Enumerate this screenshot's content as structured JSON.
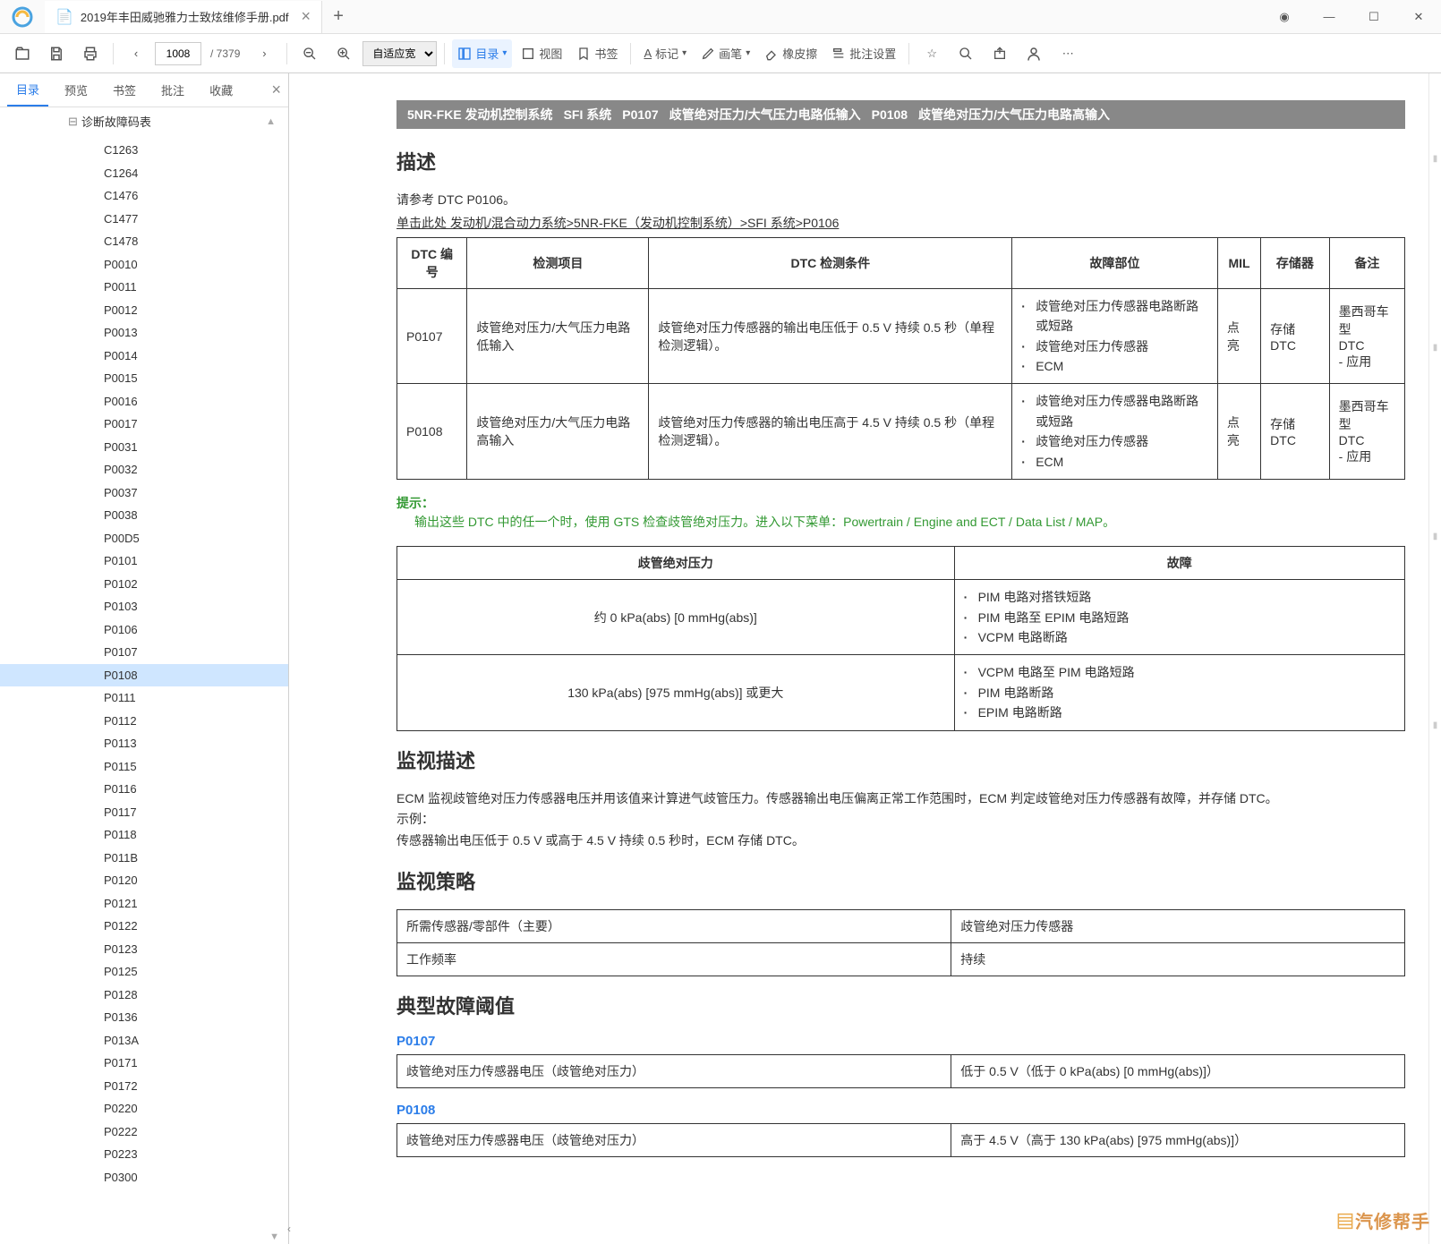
{
  "app": {
    "tab_title": "2019年丰田威驰雅力士致炫维修手册.pdf"
  },
  "toolbar": {
    "page_current": "1008",
    "page_total": "/ 7379",
    "zoom_mode": "自适应宽",
    "outline": "目录",
    "view": "视图",
    "bookmark": "书签",
    "annotate": "标记",
    "brush": "画笔",
    "eraser": "橡皮擦",
    "batch": "批注设置"
  },
  "sidebar": {
    "tabs": [
      "目录",
      "预览",
      "书签",
      "批注",
      "收藏"
    ],
    "active_tab": 0,
    "header": "诊断故障码表",
    "items": [
      "C1263",
      "C1264",
      "C1476",
      "C1477",
      "C1478",
      "P0010",
      "P0011",
      "P0012",
      "P0013",
      "P0014",
      "P0015",
      "P0016",
      "P0017",
      "P0031",
      "P0032",
      "P0037",
      "P0038",
      "P00D5",
      "P0101",
      "P0102",
      "P0103",
      "P0106",
      "P0107",
      "P0108",
      "P0111",
      "P0112",
      "P0113",
      "P0115",
      "P0116",
      "P0117",
      "P0118",
      "P011B",
      "P0120",
      "P0121",
      "P0122",
      "P0123",
      "P0125",
      "P0128",
      "P0136",
      "P013A",
      "P0171",
      "P0172",
      "P0220",
      "P0222",
      "P0223",
      "P0300"
    ],
    "selected": "P0108"
  },
  "doc": {
    "breadcrumb": [
      "5NR-FKE 发动机控制系统",
      "SFI 系统",
      "P0107",
      "歧管绝对压力/大气压力电路低输入",
      "P0108",
      "歧管绝对压力/大气压力电路高输入"
    ],
    "h_desc": "描述",
    "intro1": "请参考 DTC P0106。",
    "intro2": "单击此处 发动机/混合动力系统>5NR-FKE（发动机控制系统）>SFI 系统>P0106",
    "tbl1": {
      "headers": [
        "DTC 编号",
        "检测项目",
        "DTC 检测条件",
        "故障部位",
        "MIL",
        "存储器",
        "备注"
      ],
      "rows": [
        {
          "code": "P0107",
          "item": "歧管绝对压力/大气压力电路低输入",
          "cond": "歧管绝对压力传感器的输出电压低于 0.5 V 持续 0.5 秒（单程检测逻辑）。",
          "fault": [
            "歧管绝对压力传感器电路断路或短路",
            "歧管绝对压力传感器",
            "ECM"
          ],
          "mil": "点亮",
          "store": "存储 DTC",
          "note": "墨西哥车型\nDTC\n- 应用"
        },
        {
          "code": "P0108",
          "item": "歧管绝对压力/大气压力电路高输入",
          "cond": "歧管绝对压力传感器的输出电压高于 4.5 V 持续 0.5 秒（单程检测逻辑）。",
          "fault": [
            "歧管绝对压力传感器电路断路或短路",
            "歧管绝对压力传感器",
            "ECM"
          ],
          "mil": "点亮",
          "store": "存储 DTC",
          "note": "墨西哥车型\nDTC\n- 应用"
        }
      ]
    },
    "hint_label": "提示：",
    "hint_text": "输出这些 DTC 中的任一个时，使用 GTS 检查歧管绝对压力。进入以下菜单：Powertrain / Engine and ECT / Data List / MAP。",
    "tbl2": {
      "headers": [
        "歧管绝对压力",
        "故障"
      ],
      "rows": [
        {
          "pressure": "约 0 kPa(abs) [0 mmHg(abs)]",
          "faults": [
            "PIM 电路对搭铁短路",
            "PIM 电路至 EPIM 电路短路",
            "VCPM 电路断路"
          ]
        },
        {
          "pressure": "130 kPa(abs) [975 mmHg(abs)] 或更大",
          "faults": [
            "VCPM 电路至 PIM 电路短路",
            "PIM 电路断路",
            "EPIM 电路断路"
          ]
        }
      ]
    },
    "h_monitor_desc": "监视描述",
    "monitor_desc_text": "ECM 监视歧管绝对压力传感器电压并用该值来计算进气歧管压力。传感器输出电压偏离正常工作范围时，ECM 判定歧管绝对压力传感器有故障，并存储 DTC。\n示例：\n传感器输出电压低于 0.5 V 或高于 4.5 V 持续 0.5 秒时，ECM 存储 DTC。",
    "h_monitor_strat": "监视策略",
    "tbl3": {
      "rows": [
        [
          "所需传感器/零部件（主要）",
          "歧管绝对压力传感器"
        ],
        [
          "工作频率",
          "持续"
        ]
      ]
    },
    "h_threshold": "典型故障阈值",
    "threshold": [
      {
        "code": "P0107",
        "rows": [
          [
            "歧管绝对压力传感器电压（歧管绝对压力）",
            "低于 0.5 V（低于 0 kPa(abs) [0 mmHg(abs)]）"
          ]
        ]
      },
      {
        "code": "P0108",
        "rows": [
          [
            "歧管绝对压力传感器电压（歧管绝对压力）",
            "高于 4.5 V（高于 130 kPa(abs) [975 mmHg(abs)]）"
          ]
        ]
      }
    ]
  },
  "watermark": "汽修帮手"
}
